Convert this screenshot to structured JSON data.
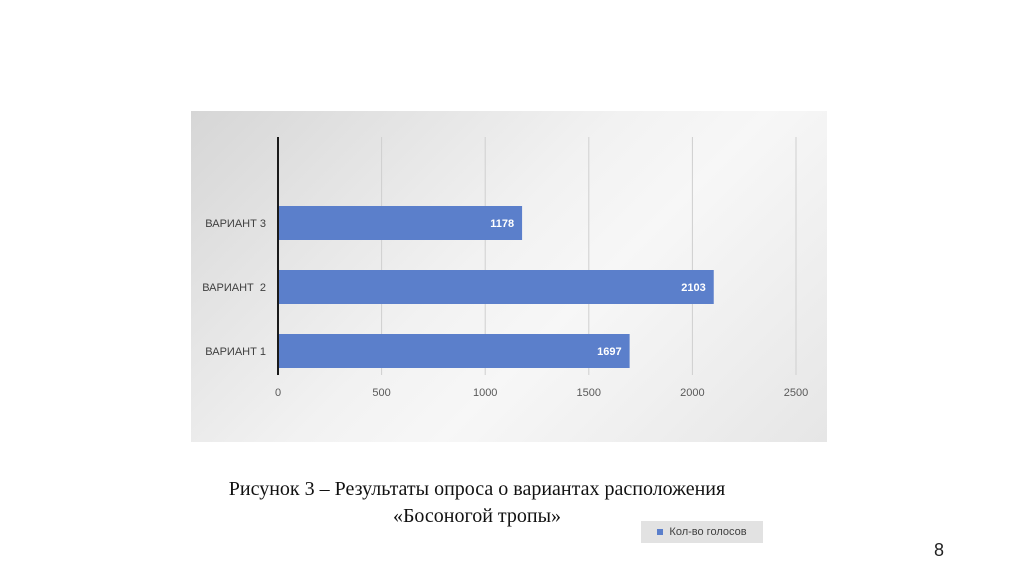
{
  "chart_data": {
    "type": "bar",
    "orientation": "horizontal",
    "categories": [
      "ВАРИАНТ 1",
      "ВАРИАНТ  2",
      "ВАРИАНТ 3"
    ],
    "series": [
      {
        "name": "Кол-во голосов",
        "values": [
          1697,
          2103,
          1178
        ],
        "color": "#5b7fcb"
      }
    ],
    "xlim": [
      0,
      2500
    ],
    "xticks": [
      0,
      500,
      1000,
      1500,
      2000,
      2500
    ],
    "data_labels": true,
    "grid": "vertical",
    "legend_position": "bottom"
  },
  "caption": {
    "line1": "Рисунок 3 – Результаты опроса о вариантах расположения",
    "line2": "«Босоногой тропы»"
  },
  "page_number": "8"
}
